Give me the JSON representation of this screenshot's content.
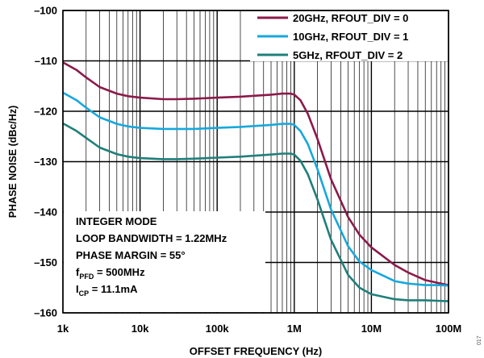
{
  "chart_data": {
    "type": "line",
    "xlabel": "OFFSET FREQUENCY (Hz)",
    "ylabel": "PHASE NOISE (dBc/Hz)",
    "x_scale": "log",
    "xlim": [
      1000,
      100000000
    ],
    "ylim": [
      -160,
      -100
    ],
    "x_tick_values": [
      1000,
      10000,
      100000,
      1000000,
      10000000,
      100000000
    ],
    "x_tick_labels": [
      "1k",
      "10k",
      "100k",
      "1M",
      "10M",
      "100M"
    ],
    "y_ticks": [
      -100,
      -110,
      -120,
      -130,
      -140,
      -150,
      -160
    ],
    "y_tick_labels": [
      "–100",
      "–110",
      "–120",
      "–130",
      "–140",
      "–150",
      "–160"
    ],
    "grid": true,
    "legend_position": "top-right",
    "series": [
      {
        "name": "20GHz, RFOUT_DIV = 0",
        "color": "#8b1a4a",
        "x": [
          1000,
          1500,
          2000,
          3000,
          5000,
          7000,
          10000,
          20000,
          30000,
          50000,
          100000,
          200000,
          500000,
          700000,
          900000,
          1000000,
          1200000,
          1500000,
          2000000,
          3000000,
          5000000,
          7000000,
          10000000,
          20000000,
          30000000,
          50000000,
          70000000,
          100000000
        ],
        "y": [
          -110.3,
          -111.8,
          -113.3,
          -115.2,
          -116.5,
          -117,
          -117.3,
          -117.6,
          -117.6,
          -117.5,
          -117.3,
          -117.1,
          -116.7,
          -116.5,
          -116.5,
          -116.7,
          -117.8,
          -120.5,
          -125.5,
          -133.5,
          -141,
          -144.5,
          -147,
          -150.5,
          -152,
          -153.5,
          -154,
          -154.5
        ]
      },
      {
        "name": "10GHz, RFOUT_DIV = 1",
        "color": "#16a8dc",
        "x": [
          1000,
          1500,
          2000,
          3000,
          5000,
          7000,
          10000,
          20000,
          30000,
          50000,
          100000,
          200000,
          500000,
          700000,
          900000,
          1000000,
          1200000,
          1500000,
          2000000,
          3000000,
          5000000,
          7000000,
          10000000,
          20000000,
          30000000,
          50000000,
          70000000,
          100000000
        ],
        "y": [
          -116.3,
          -117.8,
          -119.3,
          -121.2,
          -122.5,
          -123,
          -123.3,
          -123.5,
          -123.5,
          -123.5,
          -123.3,
          -123.1,
          -122.7,
          -122.5,
          -122.5,
          -122.7,
          -123.9,
          -126.5,
          -131.5,
          -139.5,
          -146.8,
          -149.8,
          -151.5,
          -153.7,
          -154.2,
          -154.5,
          -154.5,
          -154.6
        ]
      },
      {
        "name": "5GHz, RFOUT_DIV = 2",
        "color": "#1f7f7a",
        "x": [
          1000,
          1500,
          2000,
          3000,
          5000,
          7000,
          10000,
          20000,
          30000,
          50000,
          100000,
          200000,
          500000,
          700000,
          900000,
          1000000,
          1200000,
          1500000,
          2000000,
          3000000,
          5000000,
          7000000,
          10000000,
          20000000,
          30000000,
          50000000,
          70000000,
          100000000
        ],
        "y": [
          -122.4,
          -123.9,
          -125.3,
          -127.2,
          -128.5,
          -129,
          -129.3,
          -129.5,
          -129.5,
          -129.4,
          -129.2,
          -129,
          -128.6,
          -128.4,
          -128.4,
          -128.6,
          -129.8,
          -132.5,
          -137.5,
          -145.5,
          -152.5,
          -155,
          -156.3,
          -157.3,
          -157.5,
          -157.5,
          -157.6,
          -157.7
        ]
      }
    ],
    "annotation_lines": [
      {
        "text": "INTEGER MODE"
      },
      {
        "text": "LOOP BANDWIDTH = 1.22MHz"
      },
      {
        "text": "PHASE MARGIN = 55°"
      },
      {
        "text": "f",
        "sub": "PFD",
        "rest": " = 500MHz"
      },
      {
        "text": "I",
        "sub": "CP",
        "rest": " = 11.1mA"
      }
    ],
    "side_text": "017"
  }
}
